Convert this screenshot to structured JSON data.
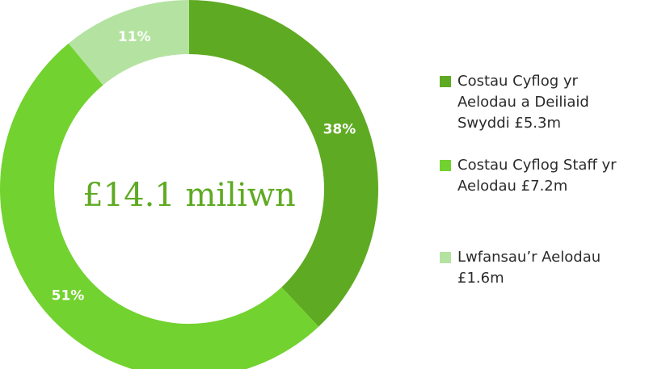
{
  "chart_data": {
    "type": "pie",
    "title": "",
    "center_label": "£14.1 miliwn",
    "slices": [
      {
        "label": "Costau Cyflog yr Aelodau a Deiliaid Swyddi £5.3m",
        "value": 38,
        "value_label": "38%",
        "color": "#5faa23"
      },
      {
        "label": "Costau Cyflog Staff yr Aelodau £7.2m",
        "value": 51,
        "value_label": "51%",
        "color": "#72d22f"
      },
      {
        "label": "Lwfansau’r Aelodau £1.6m",
        "value": 11,
        "value_label": "11%",
        "color": "#b4e3a1"
      }
    ],
    "legend_position": "right"
  },
  "legend": {
    "items": [
      {
        "text": "Costau Cyflog yr\nAelodau a Deiliaid\nSwyddi £5.3m"
      },
      {
        "text": "Costau Cyflog Staff yr\nAelodau £7.2m"
      },
      {
        "text": "Lwfansau’r Aelodau\n£1.6m"
      }
    ]
  },
  "colors": {
    "center_text": "#5faa23"
  }
}
